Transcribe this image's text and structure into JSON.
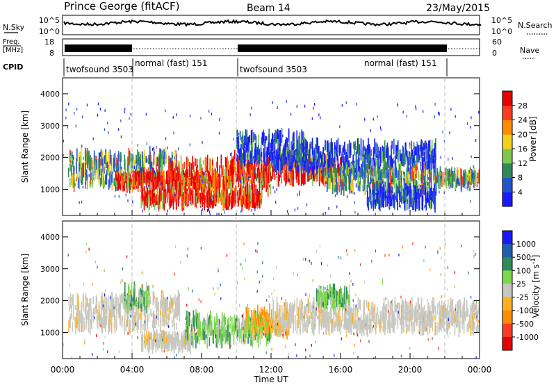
{
  "header": {
    "site": "Prince George (fitACF)",
    "beam": "Beam 14",
    "date": "23/May/2015"
  },
  "noise_panel": {
    "left_label": "N.Sky",
    "left_ticks": [
      "10^5",
      "10^0"
    ],
    "right_ticks": [
      "10^5",
      "10^0"
    ],
    "right_label": "N.Search"
  },
  "freq_panel": {
    "left_label_1": "Freq.",
    "left_label_2": "[MHz]",
    "left_ticks": [
      "18",
      "8"
    ],
    "right_ticks": [
      "60",
      "0"
    ],
    "right_label": "Nave"
  },
  "cpid": {
    "label": "CPID",
    "segments": [
      {
        "text": "twofsound 3503"
      },
      {
        "text": "normal (fast) 151"
      },
      {
        "text": "twofsound 3503"
      },
      {
        "text": "normal (fast) 151"
      }
    ]
  },
  "x_axis": {
    "label": "Time UT",
    "tick_labels": [
      "00:00",
      "04:00",
      "08:00",
      "12:00",
      "16:00",
      "20:00",
      "00:00"
    ]
  },
  "chart_data": [
    {
      "type": "heatmap",
      "name": "power",
      "ylabel": "Slant Range [km]",
      "y_ticks": [
        "1000",
        "2000",
        "3000",
        "4000"
      ],
      "ylim": [
        180,
        4500
      ],
      "xlim_hours": [
        0,
        24
      ],
      "colorbar": {
        "label": "Power [dB]",
        "ticks": [
          "4",
          "8",
          "12",
          "16",
          "20",
          "24",
          "28"
        ],
        "range": [
          0,
          30
        ]
      },
      "bands": [
        {
          "t0": 0.3,
          "t1": 6.7,
          "r0": 1150,
          "r1": 2100,
          "level": "mid"
        },
        {
          "t0": 3.0,
          "t1": 9.0,
          "r0": 1100,
          "r1": 1450,
          "level": "high"
        },
        {
          "t0": 4.5,
          "t1": 11.5,
          "r0": 550,
          "r1": 900,
          "level": "high"
        },
        {
          "t0": 6.0,
          "t1": 12.0,
          "r0": 900,
          "r1": 1900,
          "level": "high"
        },
        {
          "t0": 9.5,
          "t1": 16.0,
          "r0": 1300,
          "r1": 2000,
          "level": "high"
        },
        {
          "t0": 10.0,
          "t1": 14.0,
          "r0": 1900,
          "r1": 2700,
          "level": "low"
        },
        {
          "t0": 12.0,
          "t1": 21.5,
          "r0": 1600,
          "r1": 2400,
          "level": "low"
        },
        {
          "t0": 15.0,
          "t1": 21.5,
          "r0": 1000,
          "r1": 1600,
          "level": "mid"
        },
        {
          "t0": 17.5,
          "t1": 21.5,
          "r0": 500,
          "r1": 1000,
          "level": "low"
        },
        {
          "t0": 21.5,
          "t1": 24.0,
          "r0": 1150,
          "r1": 1500,
          "level": "mid"
        }
      ]
    },
    {
      "type": "heatmap",
      "name": "velocity",
      "ylabel": "Slant Range [km]",
      "y_ticks": [
        "1000",
        "2000",
        "3000",
        "4000"
      ],
      "ylim": [
        180,
        4500
      ],
      "xlim_hours": [
        0,
        24
      ],
      "colorbar": {
        "label": "Velocity [m s",
        "label_sup": "-1",
        "label_end": "]",
        "ticks": [
          "1000",
          "500",
          "100",
          "25",
          "-25",
          "-100",
          "-500",
          "-1000"
        ]
      },
      "bands": [
        {
          "t0": 0.3,
          "t1": 6.7,
          "r0": 1150,
          "r1": 2100,
          "level": "ground"
        },
        {
          "t0": 4.5,
          "t1": 7.5,
          "r0": 550,
          "r1": 900,
          "level": "ground"
        },
        {
          "t0": 7.0,
          "t1": 12.0,
          "r0": 700,
          "r1": 1500,
          "level": "green"
        },
        {
          "t0": 10.5,
          "t1": 13.0,
          "r0": 1000,
          "r1": 1700,
          "level": "orange"
        },
        {
          "t0": 12.0,
          "t1": 24.0,
          "r0": 1100,
          "r1": 1900,
          "level": "ground"
        },
        {
          "t0": 3.5,
          "t1": 5.0,
          "r0": 1800,
          "r1": 2400,
          "level": "green"
        },
        {
          "t0": 14.5,
          "t1": 16.5,
          "r0": 1900,
          "r1": 2300,
          "level": "green"
        }
      ]
    }
  ],
  "colors": {
    "power": [
      "#1a1aff",
      "#2255cc",
      "#2e8b57",
      "#7ec850",
      "#f2d21c",
      "#ff8c00",
      "#ff3b1f",
      "#e60000"
    ],
    "velocity": [
      "#1a1aff",
      "#1e5fb0",
      "#2e8b57",
      "#7ed84e",
      "#c8c8c0",
      "#ffb020",
      "#ff8c00",
      "#ff3b1f",
      "#e60000"
    ]
  }
}
